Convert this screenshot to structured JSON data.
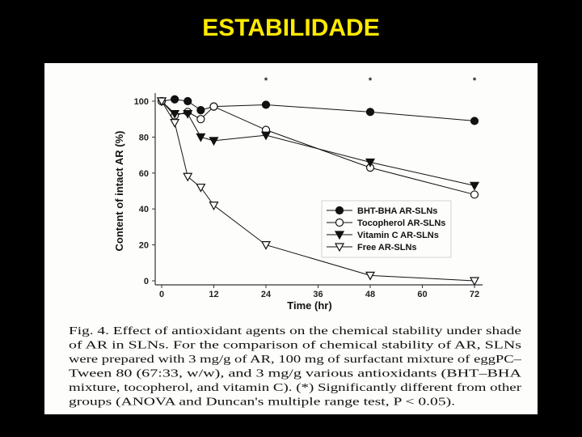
{
  "title": "ESTABILIDADE",
  "chart_data": {
    "type": "line",
    "x_label": "Time (hr)",
    "y_label": "Content of intact AR (%)",
    "x": [
      0,
      3,
      6,
      9,
      12,
      24,
      48,
      72
    ],
    "xlim": [
      0,
      72
    ],
    "xticks": [
      0,
      12,
      24,
      36,
      48,
      60,
      72
    ],
    "ylim": [
      0,
      100
    ],
    "yticks": [
      0,
      20,
      40,
      60,
      80,
      100
    ],
    "series": [
      {
        "name": "BHT-BHA AR-SLNs",
        "color": "#111111",
        "marker": "circle-filled",
        "values": [
          100,
          101,
          100,
          95,
          97,
          98,
          94,
          89
        ]
      },
      {
        "name": "Tocopherol AR-SLNs",
        "color": "#111111",
        "marker": "circle-open",
        "values": [
          100,
          92,
          94,
          90,
          97,
          84,
          63,
          48
        ]
      },
      {
        "name": "Vitamin C AR-SLNs",
        "color": "#111111",
        "marker": "triangle-filled",
        "values": [
          100,
          93,
          93,
          80,
          78,
          81,
          66,
          53
        ]
      },
      {
        "name": "Free AR-SLNs",
        "color": "#111111",
        "marker": "triangle-open",
        "values": [
          100,
          88,
          58,
          52,
          42,
          20,
          3,
          0
        ]
      }
    ],
    "annotations": [
      {
        "text": "*",
        "x": 24
      },
      {
        "text": "*",
        "x": 48
      },
      {
        "text": "*",
        "x": 72
      }
    ],
    "caption": [
      "Fig. 4.  Effect of antioxidant agents on the chemical stability under shade",
      "of AR in SLNs. For the comparison of chemical stability of AR, SLNs",
      "were prepared with 3 mg/g of AR, 100 mg of surfactant mixture of eggPC–",
      "Tween 80 (67:33, w/w), and 3 mg/g various antioxidants (BHT–BHA",
      "mixture, tocopherol, and vitamin C). (*) Significantly different from other",
      "groups (ANOVA and Duncan's multiple range test, P < 0.05)."
    ]
  }
}
